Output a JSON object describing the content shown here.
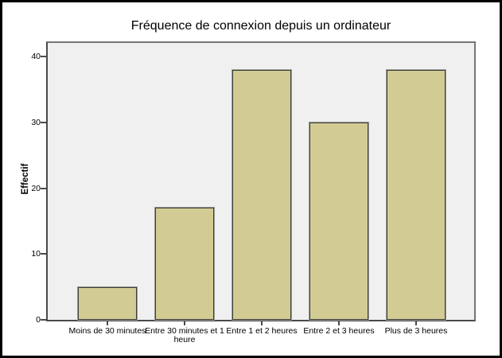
{
  "chart_data": {
    "type": "bar",
    "title": "Fréquence de connexion depuis un ordinateur",
    "xlabel": "",
    "ylabel": "Effectif",
    "categories": [
      "Moins de 30 minutes",
      "Entre 30 minutes et 1 heure",
      "Entre 1 et 2 heures",
      "Entre 2 et 3 heures",
      "Plus de 3 heures"
    ],
    "values": [
      5,
      17,
      38,
      30,
      38
    ],
    "yticks": [
      0,
      10,
      20,
      30,
      40
    ],
    "ylim": [
      0,
      42.5
    ],
    "grid": false,
    "legend": "none",
    "colors": {
      "bar_fill": "#d2cc94",
      "bar_border": "#3d3d3d",
      "bar_halo": "#9b9b93",
      "plot_background": "#f0f0f0",
      "plot_frame": "#757575",
      "axis_line": "#4a4a4a",
      "text": "#000000",
      "outer_frame": "#000000",
      "page_background": "#ffffff"
    }
  }
}
